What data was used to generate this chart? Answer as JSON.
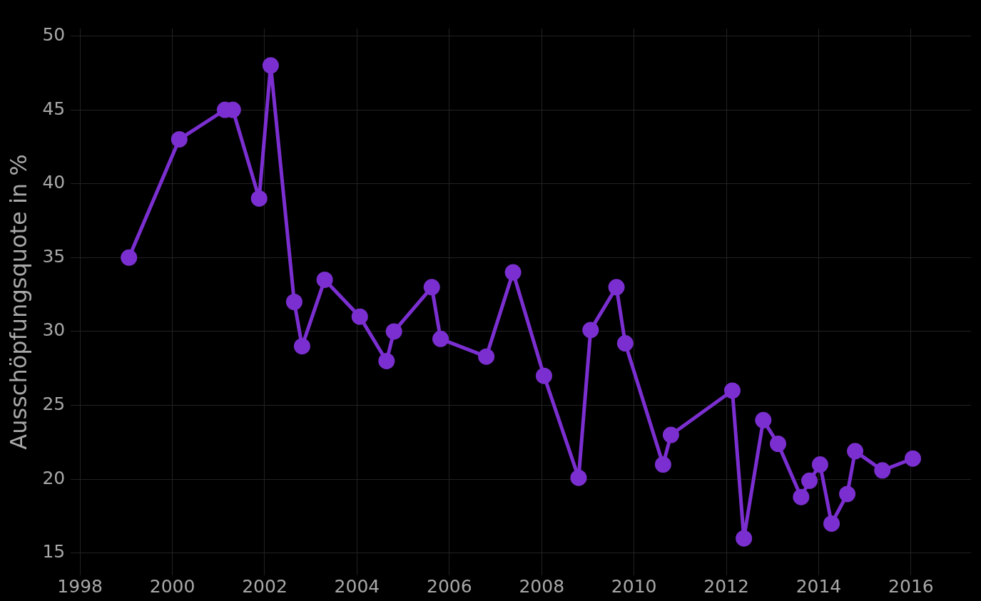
{
  "chart_data": {
    "type": "line",
    "ylabel": "Ausschöpfungsquote in %",
    "x": [
      1999.06,
      2000.15,
      2001.14,
      2001.31,
      2001.88,
      2002.13,
      2002.64,
      2002.81,
      2003.3,
      2004.06,
      2004.64,
      2004.8,
      2005.62,
      2005.81,
      2006.8,
      2007.38,
      2008.05,
      2008.8,
      2009.06,
      2009.62,
      2009.81,
      2010.63,
      2010.8,
      2012.13,
      2012.38,
      2012.8,
      2013.12,
      2013.62,
      2013.8,
      2014.03,
      2014.28,
      2014.62,
      2014.79,
      2015.38,
      2016.04
    ],
    "series": [
      {
        "color": "#7b2fd0",
        "values": [
          35,
          43,
          45,
          45,
          39,
          48,
          32,
          29,
          33.5,
          31,
          28,
          30,
          33,
          29.5,
          28.3,
          34,
          27,
          20.1,
          30.1,
          33,
          29.2,
          21,
          23,
          26,
          16,
          24,
          22.4,
          18.8,
          19.9,
          21,
          17,
          19,
          21.9,
          20.6,
          21.4
        ]
      }
    ],
    "xlim": [
      1997.8,
      2017.3
    ],
    "xticks": [
      1998,
      2000,
      2002,
      2004,
      2006,
      2008,
      2010,
      2012,
      2014,
      2016
    ],
    "ylim": [
      13.5,
      50.5
    ],
    "yticks": [
      15,
      20,
      25,
      30,
      35,
      40,
      45,
      50
    ],
    "grid": true,
    "legend": false,
    "marker": "circle",
    "line_style": "solid"
  }
}
